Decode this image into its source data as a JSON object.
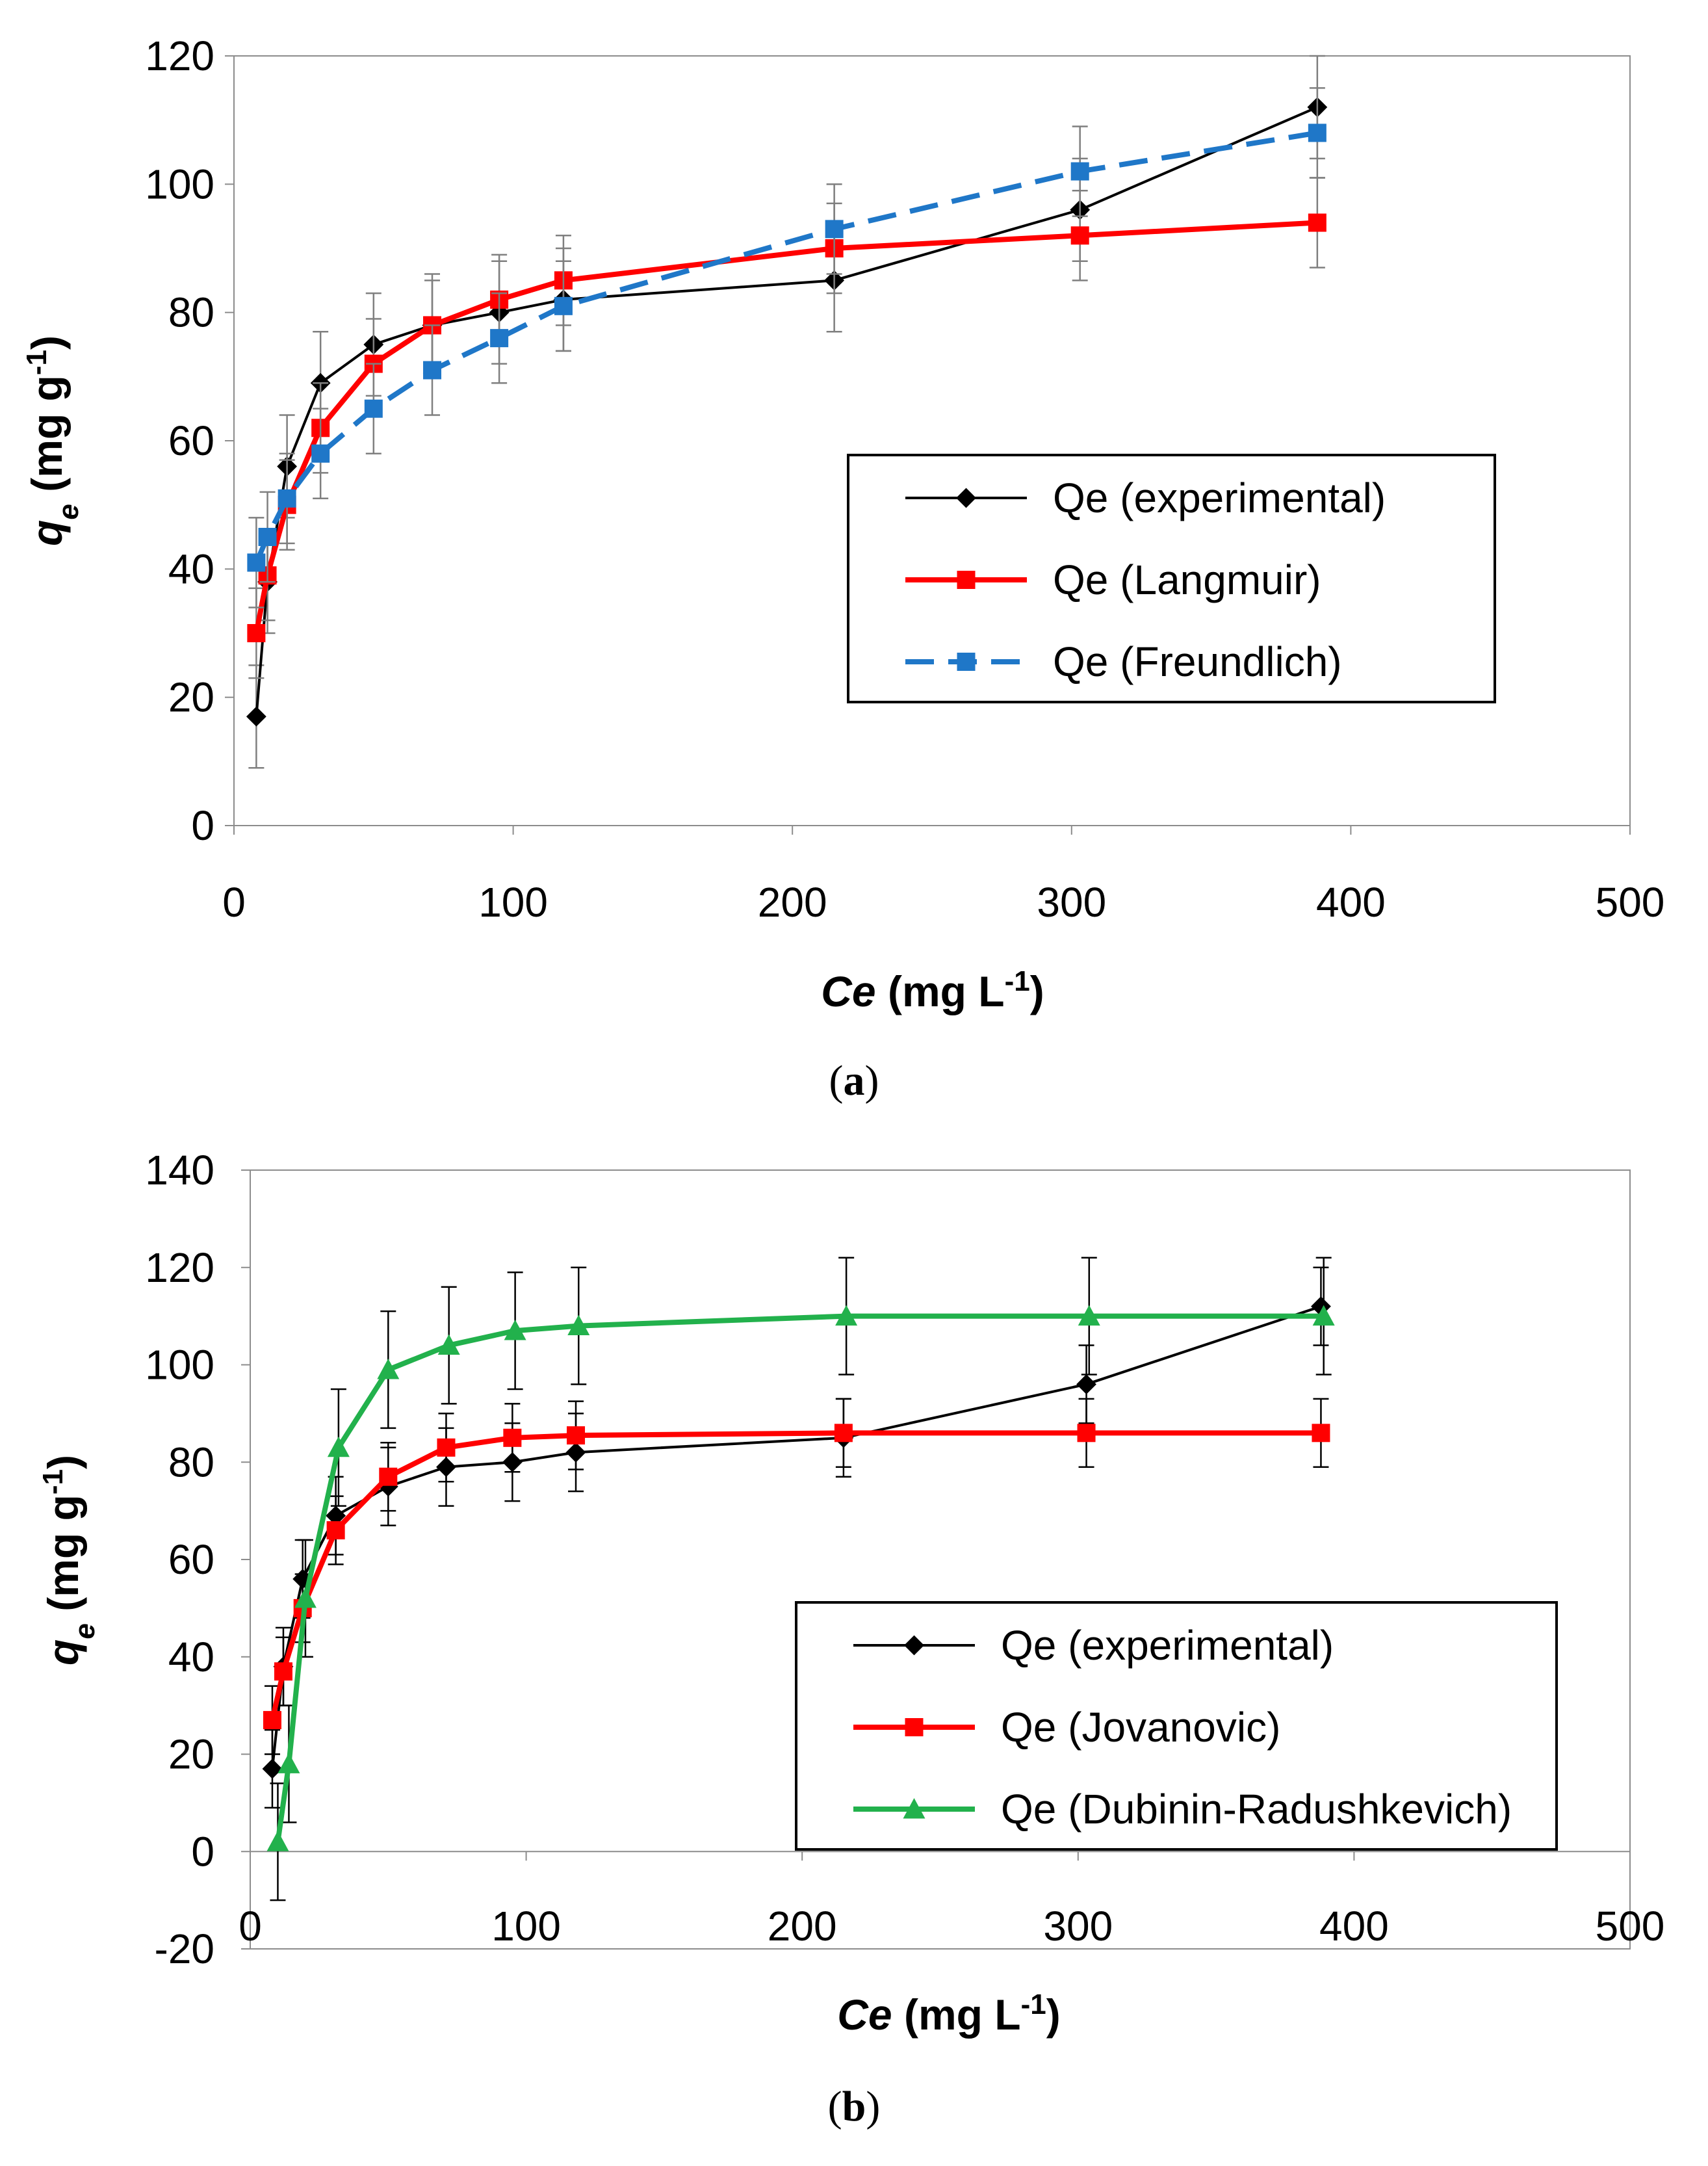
{
  "chart_data": [
    {
      "type": "line",
      "caption_letter": "a",
      "xlabel_var": "Ce",
      "xlabel_unit_pre": " (mg L",
      "xlabel_unit_sup": "-1",
      "xlabel_unit_post": ")",
      "ylabel_var": "q",
      "ylabel_sub": "e",
      "ylabel_unit_pre": " (mg g",
      "ylabel_unit_sup": "-1",
      "ylabel_unit_post": ")",
      "xlim": [
        0,
        500
      ],
      "ylim": [
        0,
        120
      ],
      "xticks": [
        0,
        100,
        200,
        300,
        400,
        500
      ],
      "yticks": [
        0,
        20,
        40,
        60,
        80,
        100,
        120
      ],
      "legend_position": "center-right",
      "series": [
        {
          "name": "Qe (experimental)",
          "color": "#000000",
          "marker": "diamond",
          "dash": "solid",
          "x": [
            8,
            12,
            19,
            31,
            50,
            71,
            95,
            118,
            215,
            303,
            388
          ],
          "y": [
            17,
            38,
            56,
            69,
            75,
            78,
            80,
            82,
            85,
            96,
            112
          ],
          "error": [
            8,
            8,
            8,
            8,
            8,
            8,
            8,
            8,
            8,
            8,
            8
          ]
        },
        {
          "name": "Qe (Langmuir)",
          "color": "#ff0000",
          "marker": "square",
          "dash": "solid",
          "x": [
            8,
            12,
            19,
            31,
            50,
            71,
            95,
            118,
            215,
            303,
            388
          ],
          "y": [
            30,
            39,
            50,
            62,
            72,
            78,
            82,
            85,
            90,
            92,
            94
          ],
          "error": [
            7,
            7,
            7,
            7,
            7,
            7,
            7,
            7,
            7,
            7,
            7
          ]
        },
        {
          "name": "Qe (Freundlich)",
          "color": "#1f77c8",
          "marker": "square",
          "dash": "dashed",
          "x": [
            8,
            12,
            19,
            31,
            50,
            71,
            95,
            118,
            215,
            303,
            388
          ],
          "y": [
            41,
            45,
            51,
            58,
            65,
            71,
            76,
            81,
            93,
            102,
            108
          ],
          "error": [
            7,
            7,
            7,
            7,
            7,
            7,
            7,
            7,
            7,
            7,
            7
          ]
        }
      ]
    },
    {
      "type": "line",
      "caption_letter": "b",
      "xlabel_var": "Ce",
      "xlabel_unit_pre": " (mg L",
      "xlabel_unit_sup": "-1",
      "xlabel_unit_post": ")",
      "ylabel_var": "q",
      "ylabel_sub": "e",
      "ylabel_unit_pre": " (mg g",
      "ylabel_unit_sup": "-1",
      "ylabel_unit_post": ")",
      "xlim": [
        0,
        500
      ],
      "ylim": [
        -20,
        140
      ],
      "xticks": [
        0,
        100,
        200,
        300,
        400,
        500
      ],
      "yticks": [
        -20,
        0,
        20,
        40,
        60,
        80,
        100,
        120,
        140
      ],
      "legend_position": "lower-right",
      "series": [
        {
          "name": "Qe (experimental)",
          "color": "#000000",
          "marker": "diamond",
          "dash": "solid",
          "x": [
            8,
            12,
            19,
            31,
            50,
            71,
            95,
            118,
            215,
            303,
            388
          ],
          "y": [
            17,
            38,
            56,
            69,
            75,
            79,
            80,
            82,
            85,
            96,
            112
          ],
          "error": [
            8,
            8,
            8,
            8,
            8,
            8,
            8,
            8,
            8,
            8,
            8
          ]
        },
        {
          "name": "Qe (Jovanovic)",
          "color": "#ff0000",
          "marker": "square",
          "dash": "solid",
          "x": [
            8,
            12,
            19,
            31,
            50,
            71,
            95,
            118,
            215,
            303,
            388
          ],
          "y": [
            27,
            37,
            50,
            66,
            77,
            83,
            85,
            85.5,
            86,
            86,
            86
          ],
          "error": [
            7,
            7,
            7,
            7,
            7,
            7,
            7,
            7,
            7,
            7,
            7
          ]
        },
        {
          "name": "Qe (Dubinin-Radushkevich)",
          "color": "#22b14c",
          "marker": "triangle",
          "dash": "solid",
          "x": [
            10,
            14,
            20,
            32,
            50,
            72,
            96,
            119,
            216,
            304,
            389
          ],
          "y": [
            2,
            18,
            52,
            83,
            99,
            104,
            107,
            108,
            110,
            110,
            110
          ],
          "error": [
            12,
            12,
            12,
            12,
            12,
            12,
            12,
            12,
            12,
            12,
            12
          ]
        }
      ]
    }
  ]
}
